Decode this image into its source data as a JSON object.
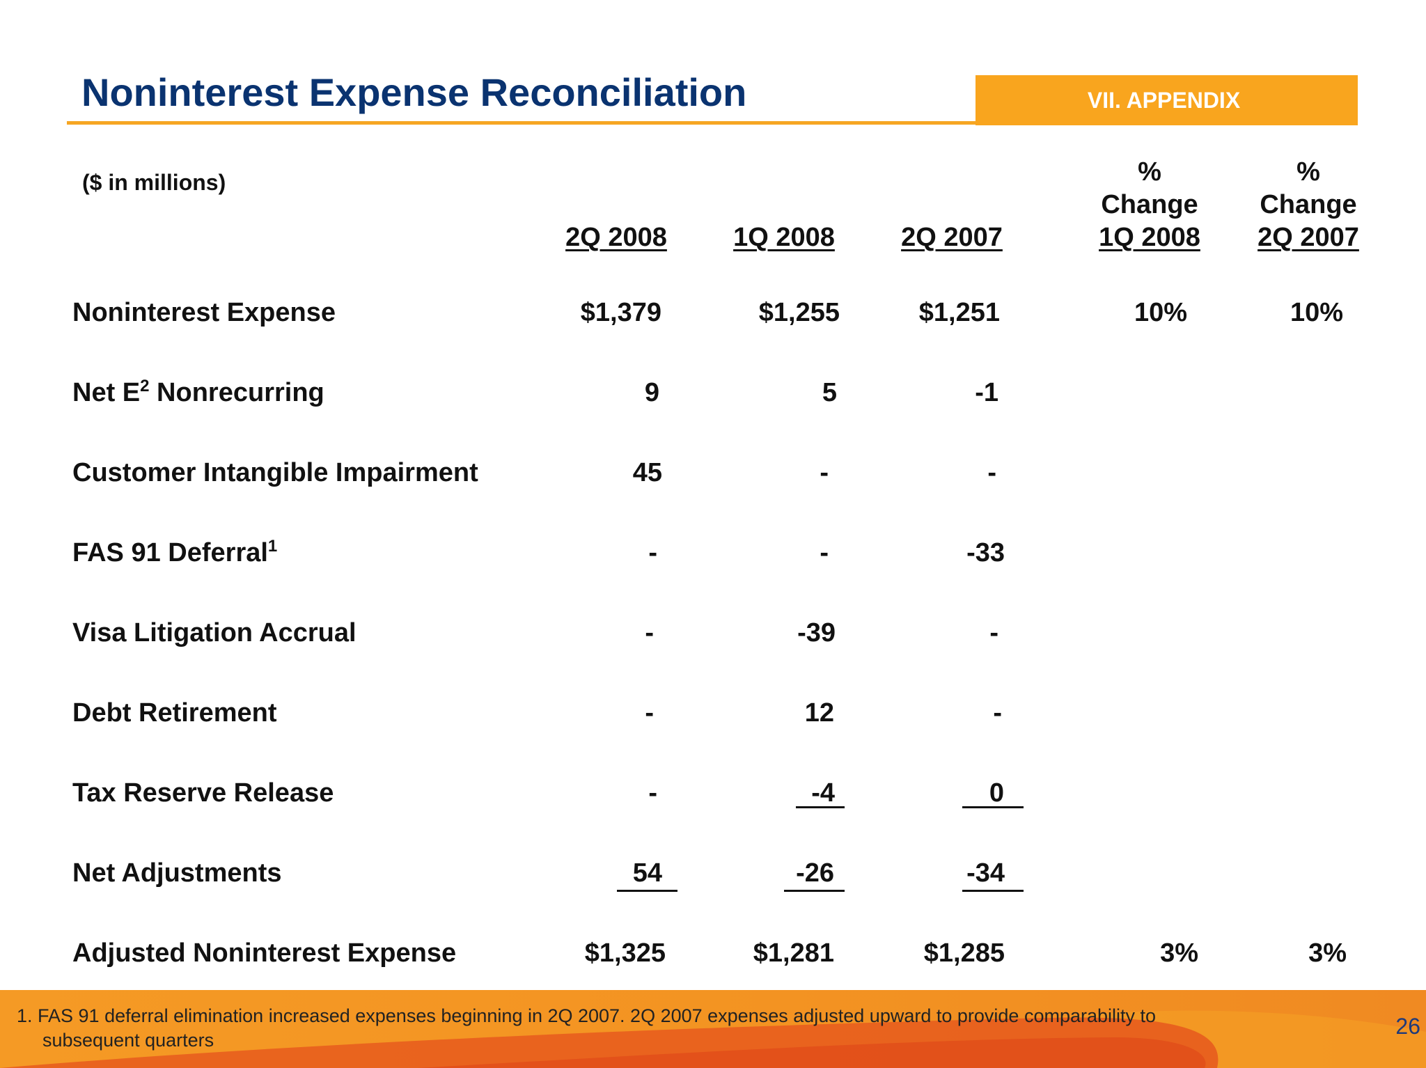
{
  "header": {
    "title": "Noninterest Expense Reconciliation",
    "section": "VII. APPENDIX"
  },
  "table": {
    "units_note": "($ in millions)",
    "columns": [
      {
        "label": "2Q 2008"
      },
      {
        "label": "1Q 2008"
      },
      {
        "label": "2Q 2007"
      },
      {
        "pre": "%",
        "mid": "Change",
        "label": "1Q 2008"
      },
      {
        "pre": "%",
        "mid": "Change",
        "label": "2Q 2007"
      }
    ],
    "rows": [
      {
        "label": "Noninterest Expense",
        "values": [
          "$1,379",
          "$1,255",
          "$1,251",
          "10%",
          "10%"
        ]
      },
      {
        "label_pre": "Net E",
        "label_sup": "2",
        "label_post": " Nonrecurring",
        "values": [
          "9",
          "5",
          "-1",
          "",
          ""
        ]
      },
      {
        "label": "Customer Intangible Impairment",
        "values": [
          "45",
          "-",
          "-",
          "",
          ""
        ]
      },
      {
        "label_pre": "FAS 91 Deferral",
        "label_sup": "1",
        "label_post": "",
        "values": [
          "-",
          "-",
          "-33",
          "",
          ""
        ]
      },
      {
        "label": "Visa Litigation Accrual",
        "values": [
          "-",
          "-39",
          "-",
          "",
          ""
        ]
      },
      {
        "label": "Debt Retirement",
        "values": [
          "-",
          "12",
          "-",
          "",
          ""
        ]
      },
      {
        "label": "Tax Reserve Release",
        "values": [
          "-",
          "-4",
          "0",
          "",
          ""
        ]
      },
      {
        "label": "Net Adjustments",
        "values": [
          "54",
          "-26",
          "-34",
          "",
          ""
        ]
      },
      {
        "label": "Adjusted Noninterest Expense",
        "values": [
          "$1,325",
          "$1,281",
          "$1,285",
          "3%",
          "3%"
        ]
      }
    ]
  },
  "footer": {
    "footnote_line1": "1. FAS 91 deferral elimination increased expenses beginning in 2Q 2007.  2Q 2007 expenses adjusted upward to provide comparability to",
    "footnote_line2": "subsequent quarters",
    "page_number": "26"
  },
  "colors": {
    "title": "#0a3370",
    "accent_orange": "#f9a51e",
    "footer_orange": "#f39322",
    "footer_swoosh": "#e4541c"
  }
}
